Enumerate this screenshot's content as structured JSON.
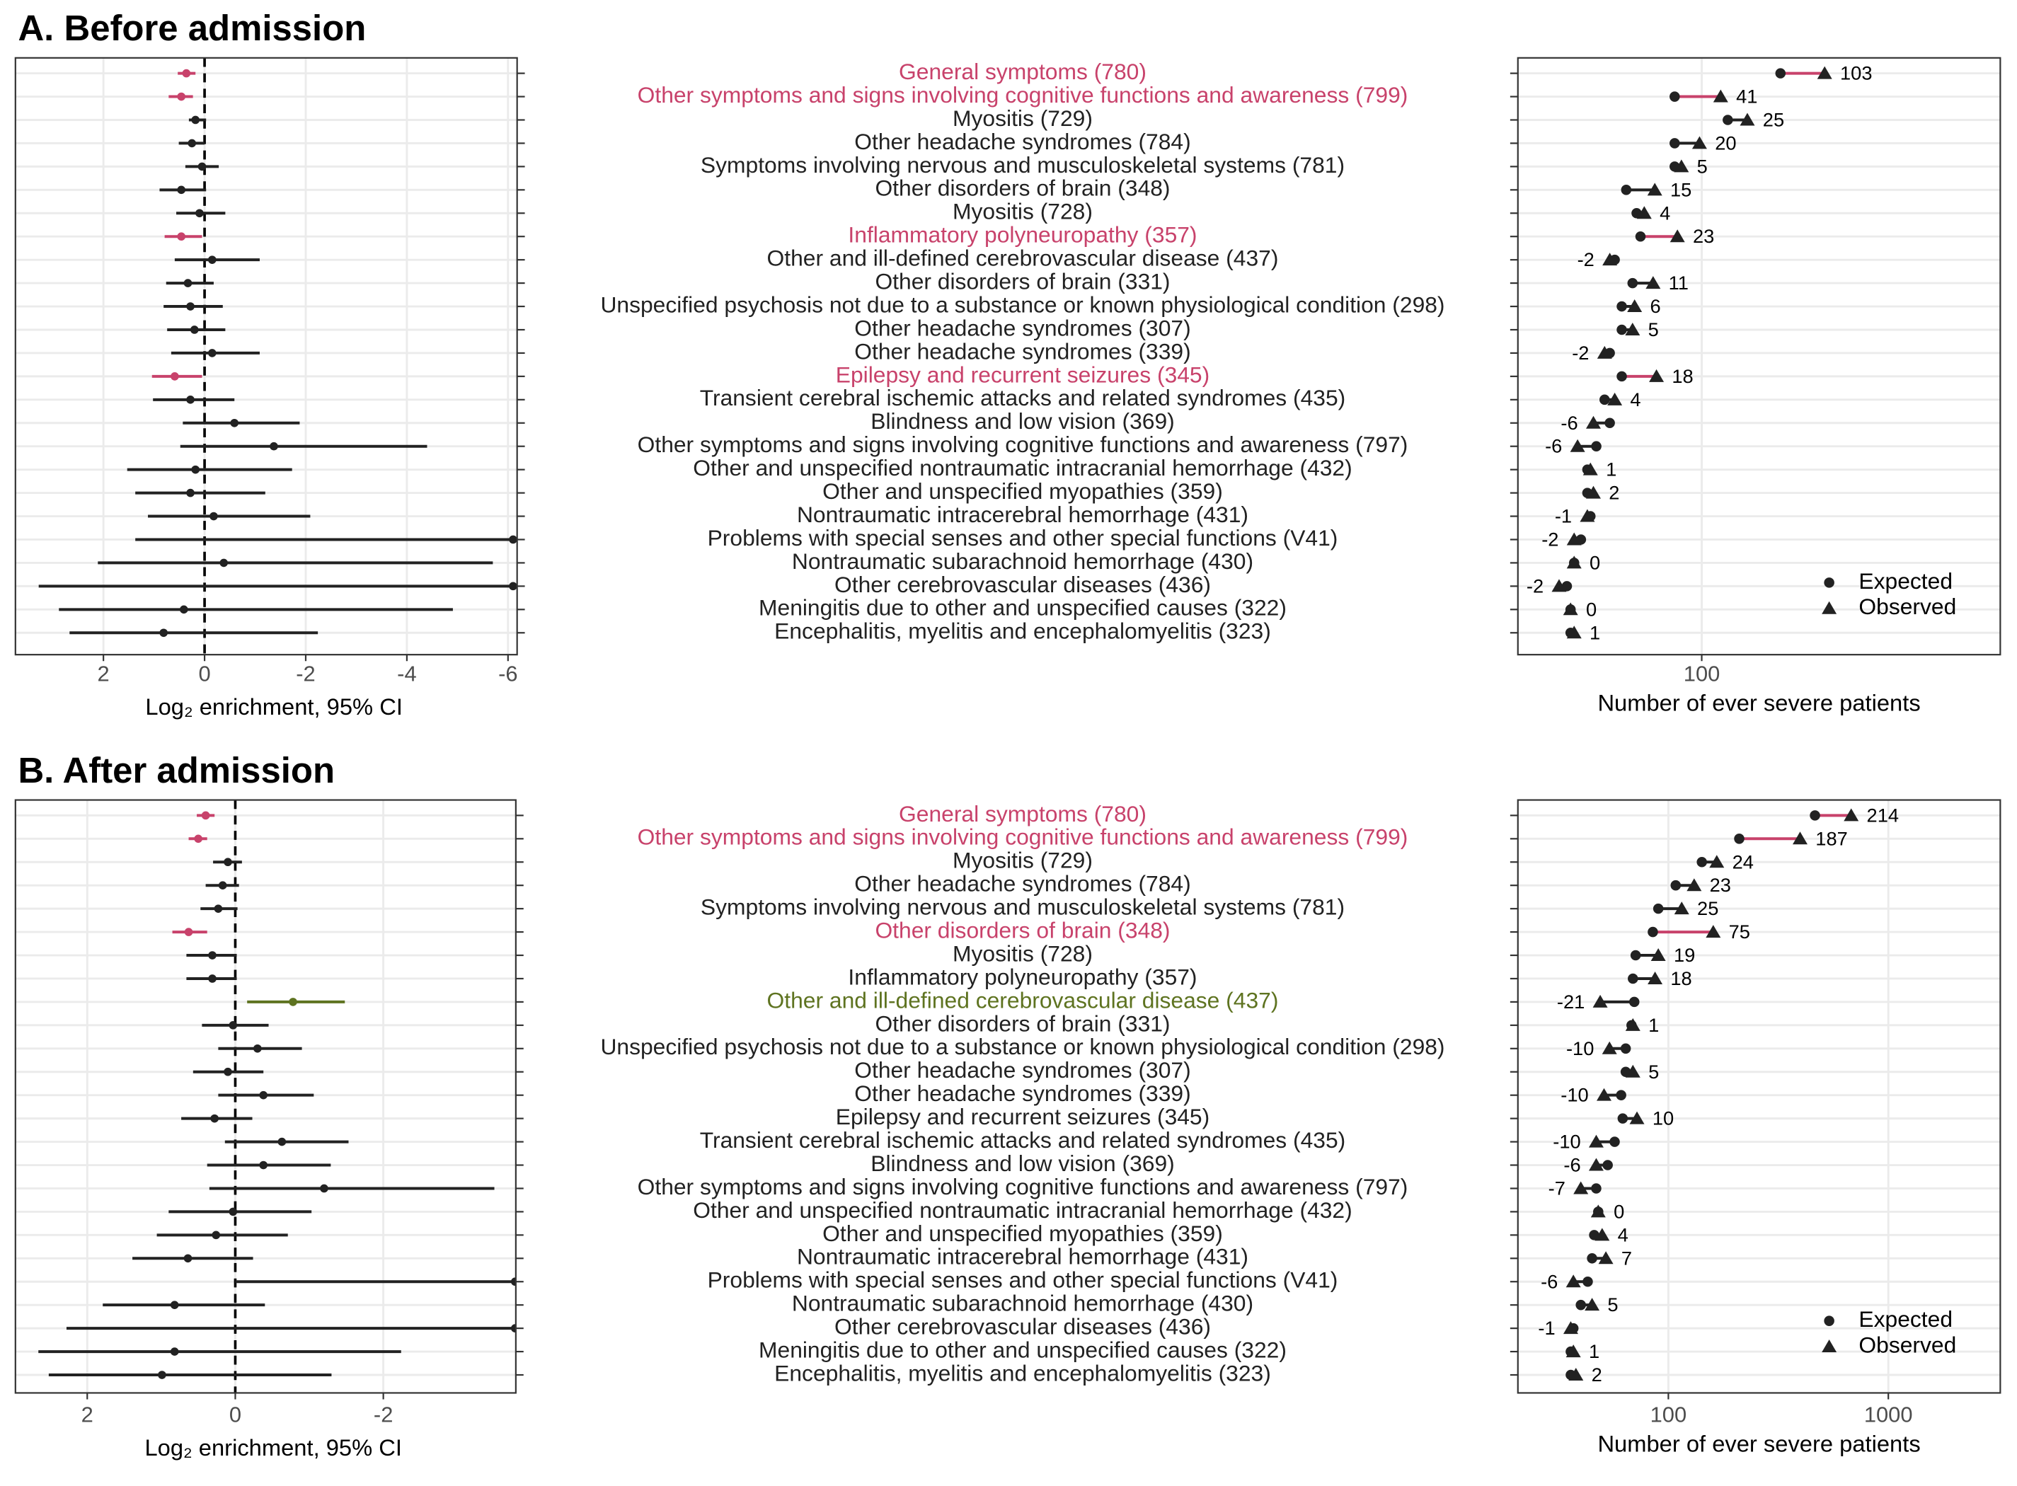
{
  "chart_data": [
    {
      "type": "forest",
      "title": "A. Before admission",
      "xlabel": "Log₂ enrichment, 95% CI",
      "categories": [
        "General symptoms (780)",
        "Other symptoms and signs involving cognitive functions and awareness (799)",
        "Myositis (729)",
        "Other headache syndromes (784)",
        "Symptoms involving nervous and musculoskeletal systems (781)",
        "Other disorders of brain (348)",
        "Myositis (728)",
        "Inflammatory polyneuropathy (357)",
        "Other and ill-defined cerebrovascular disease (437)",
        "Other disorders of brain (331)",
        "Unspecified psychosis not due to a substance or known physiological condition (298)",
        "Other headache syndromes (307)",
        "Other headache syndromes (339)",
        "Epilepsy and recurrent seizures (345)",
        "Transient cerebral ischemic attacks and related syndromes (435)",
        "Blindness and low vision (369)",
        "Other symptoms and signs involving cognitive functions and awareness (797)",
        "Other and unspecified nontraumatic intracranial hemorrhage (432)",
        "Other and unspecified myopathies (359)",
        "Nontraumatic intracerebral hemorrhage (431)",
        "Problems with special senses and other special functions (V41)",
        "Nontraumatic subarachnoid hemorrhage (430)",
        "Other cerebrovascular diseases (436)",
        "Meningitis due to other and unspecified causes (322)",
        "Encephalitis, myelitis and encephalomyelitis (323)"
      ],
      "colors": [
        "#c8426b",
        "#c8426b",
        "#222222",
        "#222222",
        "#222222",
        "#222222",
        "#222222",
        "#c8426b",
        "#222222",
        "#222222",
        "#222222",
        "#222222",
        "#222222",
        "#c8426b",
        "#222222",
        "#222222",
        "#222222",
        "#222222",
        "#222222",
        "#222222",
        "#222222",
        "#222222",
        "#222222",
        "#222222",
        "#222222"
      ],
      "values": [
        0.36,
        0.46,
        0.18,
        0.25,
        0.05,
        0.46,
        0.1,
        0.46,
        -0.15,
        0.33,
        0.28,
        0.2,
        -0.15,
        0.59,
        0.28,
        -0.59,
        -1.37,
        0.18,
        0.28,
        -0.18,
        -6.1,
        -0.38,
        -6.1,
        0.41,
        0.81
      ],
      "ci_upper": [
        0.53,
        0.71,
        0.31,
        0.51,
        0.38,
        0.89,
        0.56,
        0.79,
        0.59,
        0.76,
        0.81,
        0.74,
        0.66,
        1.04,
        1.02,
        0.43,
        0.48,
        1.53,
        1.37,
        1.12,
        1.37,
        2.11,
        3.28,
        2.88,
        2.67
      ],
      "ci_lower": [
        0.18,
        0.23,
        -0.03,
        0.0,
        -0.28,
        -0.03,
        -0.41,
        0.05,
        -1.09,
        -0.18,
        -0.36,
        -0.41,
        -1.09,
        0.05,
        -0.59,
        -1.88,
        -4.4,
        -1.73,
        -1.2,
        -2.09,
        -13,
        -5.7,
        -15,
        -4.91,
        -2.24
      ],
      "xlim": [
        3.74,
        -6.18
      ],
      "xticks": [
        2,
        0,
        -2,
        -4,
        -6
      ],
      "ref_x": 0,
      "grid": true
    },
    {
      "type": "dot",
      "xlabel": "Number of ever severe patients",
      "log_scale": true,
      "xlim": [
        18.5,
        1549
      ],
      "xticks": [
        100
      ],
      "legend": "bottom-right",
      "series": [
        {
          "name": "Expected",
          "marker": "circle",
          "color": "#222222",
          "values": [
            206,
            78,
            127,
            78,
            78,
            50,
            55,
            57,
            45,
            53,
            48,
            48,
            43,
            48,
            41,
            43,
            38,
            35,
            35,
            36,
            33,
            31,
            29,
            30,
            30
          ]
        },
        {
          "name": "Observed",
          "marker": "triangle",
          "color": "#222222",
          "values": [
            309,
            119,
            152,
            98,
            83,
            65,
            59,
            80,
            43,
            64,
            54,
            53,
            41,
            66,
            45,
            37,
            32,
            36,
            37,
            35,
            31,
            31,
            27,
            30,
            31
          ]
        }
      ],
      "differences": [
        103,
        41,
        25,
        20,
        5,
        15,
        4,
        23,
        -2,
        11,
        6,
        5,
        -2,
        18,
        4,
        -6,
        -6,
        1,
        2,
        -1,
        -2,
        0,
        -2,
        0,
        1
      ],
      "segment_colors": [
        "#c8426b",
        "#c8426b",
        "#222222",
        "#222222",
        "#222222",
        "#222222",
        "#222222",
        "#c8426b",
        "#222222",
        "#222222",
        "#222222",
        "#222222",
        "#222222",
        "#c8426b",
        "#222222",
        "#222222",
        "#222222",
        "#222222",
        "#222222",
        "#222222",
        "#222222",
        "#222222",
        "#222222",
        "#222222",
        "#222222"
      ],
      "grid": true
    },
    {
      "type": "forest",
      "title": "B. After admission",
      "xlabel": "Log₂ enrichment, 95% CI",
      "categories": [
        "General symptoms (780)",
        "Other symptoms and signs involving cognitive functions and awareness (799)",
        "Myositis (729)",
        "Other headache syndromes (784)",
        "Symptoms involving nervous and musculoskeletal systems (781)",
        "Other disorders of brain (348)",
        "Myositis (728)",
        "Inflammatory polyneuropathy (357)",
        "Other and ill-defined cerebrovascular disease (437)",
        "Other disorders of brain (331)",
        "Unspecified psychosis not due to a substance or known physiological condition (298)",
        "Other headache syndromes (307)",
        "Other headache syndromes (339)",
        "Epilepsy and recurrent seizures (345)",
        "Transient cerebral ischemic attacks and related syndromes (435)",
        "Blindness and low vision (369)",
        "Other symptoms and signs involving cognitive functions and awareness (797)",
        "Other and unspecified nontraumatic intracranial hemorrhage (432)",
        "Other and unspecified myopathies (359)",
        "Nontraumatic intracerebral hemorrhage (431)",
        "Problems with special senses and other special functions (V41)",
        "Nontraumatic subarachnoid hemorrhage (430)",
        "Other cerebrovascular diseases (436)",
        "Meningitis due to other and unspecified causes (322)",
        "Encephalitis, myelitis and encephalomyelitis (323)"
      ],
      "colors": [
        "#c8426b",
        "#c8426b",
        "#222222",
        "#222222",
        "#222222",
        "#c8426b",
        "#222222",
        "#222222",
        "#5e7320",
        "#222222",
        "#222222",
        "#222222",
        "#222222",
        "#222222",
        "#222222",
        "#222222",
        "#222222",
        "#222222",
        "#222222",
        "#222222",
        "#222222",
        "#222222",
        "#222222",
        "#222222",
        "#222222"
      ],
      "values": [
        0.4,
        0.5,
        0.1,
        0.17,
        0.23,
        0.63,
        0.31,
        0.31,
        -0.78,
        0.03,
        -0.3,
        0.1,
        -0.38,
        0.28,
        -0.63,
        -0.38,
        -1.2,
        0.03,
        0.26,
        0.64,
        -3.78,
        0.82,
        -3.78,
        0.82,
        0.99
      ],
      "ci_upper": [
        0.52,
        0.63,
        0.3,
        0.4,
        0.47,
        0.85,
        0.66,
        0.66,
        -0.16,
        0.45,
        0.23,
        0.57,
        0.23,
        0.73,
        0.14,
        0.38,
        0.35,
        0.9,
        1.06,
        1.39,
        0.0,
        1.79,
        2.28,
        2.66,
        2.52
      ],
      "ci_lower": [
        0.28,
        0.38,
        -0.09,
        -0.05,
        -0.03,
        0.38,
        -0.02,
        -0.02,
        -1.48,
        -0.45,
        -0.9,
        -0.38,
        -1.06,
        -0.23,
        -1.53,
        -1.29,
        -3.5,
        -1.03,
        -0.71,
        -0.24,
        -9,
        -0.4,
        -10,
        -2.24,
        -1.3
      ],
      "xlim": [
        2.97,
        -3.79
      ],
      "xticks": [
        2,
        0,
        -2
      ],
      "ref_x": 0,
      "grid": true
    },
    {
      "type": "dot",
      "xlabel": "Number of ever severe patients",
      "log_scale": true,
      "xlim": [
        20.7,
        3228
      ],
      "xticks": [
        100,
        1000
      ],
      "legend": "bottom-right",
      "series": [
        {
          "name": "Expected",
          "marker": "circle",
          "color": "#222222",
          "values": [
            464,
            210,
            142,
            108,
            90,
            85,
            71,
            69,
            70,
            68,
            64,
            64,
            61,
            62,
            57,
            53,
            47,
            48,
            46,
            45,
            43,
            40,
            37,
            36,
            36
          ]
        },
        {
          "name": "Observed",
          "marker": "triangle",
          "color": "#222222",
          "values": [
            678,
            397,
            166,
            131,
            115,
            160,
            90,
            87,
            49,
            69,
            54,
            69,
            51,
            72,
            47,
            47,
            40,
            48,
            50,
            52,
            37,
            45,
            36,
            37,
            38
          ]
        }
      ],
      "differences": [
        214,
        187,
        24,
        23,
        25,
        75,
        19,
        18,
        -21,
        1,
        -10,
        5,
        -10,
        10,
        -10,
        -6,
        -7,
        0,
        4,
        7,
        -6,
        5,
        -1,
        1,
        2
      ],
      "segment_colors": [
        "#c8426b",
        "#c8426b",
        "#222222",
        "#222222",
        "#222222",
        "#c8426b",
        "#222222",
        "#222222",
        "#222222",
        "#222222",
        "#222222",
        "#222222",
        "#222222",
        "#222222",
        "#222222",
        "#222222",
        "#222222",
        "#222222",
        "#222222",
        "#222222",
        "#222222",
        "#222222",
        "#222222",
        "#222222",
        "#222222"
      ],
      "grid": true
    }
  ]
}
